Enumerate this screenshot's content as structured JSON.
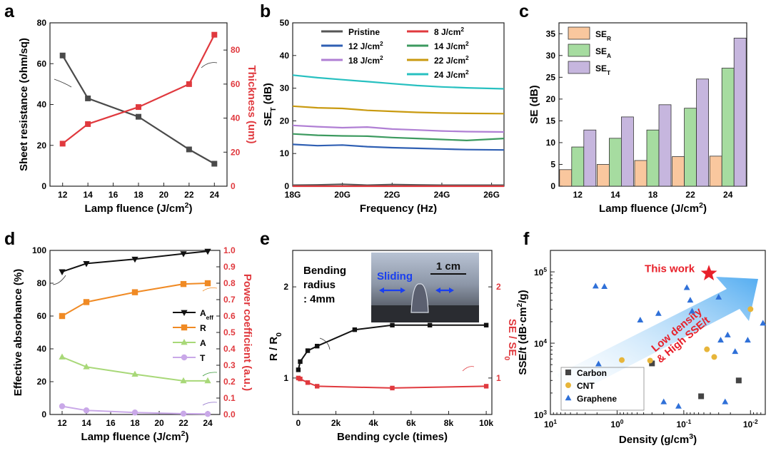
{
  "chart_data": [
    {
      "panel": "a",
      "type": "line",
      "x": [
        12,
        14,
        18,
        22,
        24
      ],
      "xlabel_main": "Lamp fluence (J/cm",
      "xlabel_sup": "2",
      "xlabel_end": ")",
      "xticks": [
        "12",
        "14",
        "16",
        "18",
        "20",
        "22",
        "24"
      ],
      "ylabel_left": "Sheet resistance (ohm/sq)",
      "ylabel_right": "Thickness (um)",
      "yticks_left": [
        "0",
        "20",
        "40",
        "60",
        "80"
      ],
      "yticks_right": [
        "0",
        "20",
        "40",
        "60",
        "80"
      ],
      "ylim_left": [
        0,
        80
      ],
      "ylim_right": [
        0,
        96
      ],
      "series": [
        {
          "name": "Sheet resistance",
          "axis": "left",
          "color": "#4a4a4a",
          "values": [
            64,
            43,
            34,
            18,
            11
          ]
        },
        {
          "name": "Thickness",
          "axis": "right",
          "color": "#e0393e",
          "values": [
            25,
            36.5,
            46.5,
            60,
            89
          ]
        }
      ]
    },
    {
      "panel": "b",
      "type": "line",
      "xlabel": "Frequency (Hz)",
      "xticks": [
        "18G",
        "20G",
        "22G",
        "24G",
        "26G"
      ],
      "xlim": [
        18,
        26.5
      ],
      "ylabel_main": "SE",
      "ylabel_sub": "T",
      "ylabel_end": " (dB)",
      "yticks": [
        "0",
        "10",
        "20",
        "30",
        "40",
        "50"
      ],
      "ylim": [
        0,
        50
      ],
      "series": [
        {
          "name": "Pristine",
          "color": "#555555",
          "x": [
            18,
            19,
            20,
            21,
            22,
            23,
            24,
            25,
            26.5
          ],
          "values": [
            0.3,
            0.4,
            0.6,
            0.3,
            0.5,
            0.4,
            0.3,
            0.3,
            0.3
          ]
        },
        {
          "name": "8",
          "unit": "J/cm",
          "sup": "2",
          "color": "#e0393e",
          "x": [
            18,
            20,
            22,
            24,
            26.5
          ],
          "values": [
            0,
            0,
            0,
            0,
            0
          ]
        },
        {
          "name": "12",
          "unit": "J/cm",
          "sup": "2",
          "color": "#2f5fb3",
          "x": [
            18,
            19,
            20,
            21,
            22,
            23,
            24,
            25,
            26.5
          ],
          "values": [
            12.8,
            12.4,
            12.6,
            12.1,
            11.8,
            11.6,
            11.4,
            11.2,
            11.1
          ]
        },
        {
          "name": "14",
          "unit": "J/cm",
          "sup": "2",
          "color": "#3c9a5f",
          "x": [
            18,
            19,
            20,
            21,
            22,
            23,
            24,
            25,
            26.5
          ],
          "values": [
            16.0,
            15.6,
            15.4,
            15.3,
            14.9,
            14.6,
            14.3,
            14.0,
            14.6
          ]
        },
        {
          "name": "18",
          "unit": "J/cm",
          "sup": "2",
          "color": "#b07fd4",
          "x": [
            18,
            19,
            20,
            21,
            22,
            23,
            24,
            25,
            26.5
          ],
          "values": [
            18.6,
            18.2,
            17.9,
            18.1,
            17.5,
            17.2,
            16.9,
            16.7,
            16.6
          ]
        },
        {
          "name": "22",
          "unit": "J/cm",
          "sup": "2",
          "color": "#c99a10",
          "x": [
            18,
            19,
            20,
            21,
            22,
            23,
            24,
            25,
            26.5
          ],
          "values": [
            24.5,
            24.0,
            23.8,
            23.2,
            22.9,
            22.6,
            22.4,
            22.3,
            22.2
          ]
        },
        {
          "name": "24",
          "unit": "J/cm",
          "sup": "2",
          "color": "#27c0c0",
          "x": [
            18,
            19,
            20,
            21,
            22,
            23,
            24,
            25,
            26.5
          ],
          "values": [
            34.0,
            33.2,
            32.6,
            32.0,
            31.4,
            30.8,
            30.4,
            30.1,
            29.8
          ]
        }
      ]
    },
    {
      "panel": "c",
      "type": "bar",
      "categories": [
        "12",
        "14",
        "18",
        "22",
        "24"
      ],
      "xlabel_main": "Lamp fluence (J/cm",
      "xlabel_sup": "2",
      "xlabel_end": ")",
      "ylabel": "SE (dB)",
      "yticks": [
        "0",
        "5",
        "10",
        "15",
        "20",
        "25",
        "30",
        "35"
      ],
      "ylim": [
        0,
        37.5
      ],
      "series": [
        {
          "name": "SE",
          "sub": "R",
          "color": "#f9c79e",
          "values": [
            3.8,
            5.0,
            5.9,
            6.8,
            6.9
          ]
        },
        {
          "name": "SE",
          "sub": "A",
          "color": "#a6dca0",
          "values": [
            9.0,
            11.0,
            12.9,
            17.9,
            27.1
          ]
        },
        {
          "name": "SE",
          "sub": "T",
          "color": "#c6b6de",
          "values": [
            12.9,
            15.9,
            18.7,
            24.6,
            34.0
          ]
        }
      ]
    },
    {
      "panel": "d",
      "type": "line",
      "x": [
        12,
        14,
        18,
        22,
        24
      ],
      "xlabel_main": "Lamp fluence (J/cm",
      "xlabel_sup": "2",
      "xlabel_end": ")",
      "xticks": [
        "12",
        "14",
        "16",
        "18",
        "20",
        "22",
        "24"
      ],
      "ylabel_left": "Effective absorbance (%)",
      "ylabel_right": "Power coefficient (a.u.)",
      "yticks_left": [
        "0",
        "20",
        "40",
        "60",
        "80",
        "100"
      ],
      "yticks_right": [
        "0.0",
        "0.1",
        "0.2",
        "0.3",
        "0.4",
        "0.5",
        "0.6",
        "0.7",
        "0.8",
        "0.9",
        "1.0"
      ],
      "ylim_left": [
        0,
        100
      ],
      "ylim_right": [
        0,
        1
      ],
      "series": [
        {
          "name": "A",
          "sub": "eff",
          "axis": "left",
          "marker": "tri-down",
          "color": "#111111",
          "values": [
            87,
            92,
            94.7,
            98,
            99.5
          ]
        },
        {
          "name": "R",
          "axis": "right",
          "marker": "square",
          "color": "#f08a24",
          "values": [
            0.6,
            0.685,
            0.745,
            0.795,
            0.8
          ]
        },
        {
          "name": "A",
          "axis": "right",
          "marker": "tri-up",
          "color": "#a8d878",
          "values": [
            0.35,
            0.29,
            0.245,
            0.205,
            0.205
          ]
        },
        {
          "name": "T",
          "axis": "right",
          "marker": "circle",
          "color": "#c9a8e8",
          "values": [
            0.05,
            0.025,
            0.012,
            0.005,
            0.003
          ]
        }
      ]
    },
    {
      "panel": "e",
      "type": "line",
      "xlabel": "Bending cycle (times)",
      "xticks": [
        "0",
        "2k",
        "4k",
        "6k",
        "8k",
        "10k"
      ],
      "xlim": [
        -300,
        10300
      ],
      "ylabel_left_main": "R / R",
      "ylabel_left_sub": "0",
      "ylabel_right_main": "SE / SE",
      "ylabel_right_sub": "0",
      "yticks_left": [
        "1",
        "2"
      ],
      "yticks_right": [
        "1",
        "2"
      ],
      "ylim": [
        0.6,
        2.4
      ],
      "annotation": [
        "Bending",
        "radius",
        ": 4mm"
      ],
      "inset": {
        "label_sliding": "Sliding",
        "scale_bar": "1 cm"
      },
      "series": [
        {
          "name": "R / R0",
          "axis": "left",
          "color": "#111111",
          "x": [
            0,
            100,
            500,
            1000,
            3000,
            5000,
            7000,
            10000
          ],
          "values": [
            1.09,
            1.18,
            1.3,
            1.35,
            1.53,
            1.58,
            1.58,
            1.58
          ]
        },
        {
          "name": "SE / SE0",
          "axis": "right",
          "color": "#e0393e",
          "x": [
            0,
            100,
            500,
            1000,
            5000,
            10000
          ],
          "values": [
            1.0,
            0.99,
            0.95,
            0.91,
            0.89,
            0.91
          ]
        }
      ]
    },
    {
      "panel": "f",
      "type": "scatter",
      "xlabel_main": "Density (g/cm",
      "xlabel_sup": "3",
      "xlabel_end": ")",
      "ylabel_main": "SSE/t (dB·cm",
      "ylabel_sup": "2",
      "ylabel_end": "/g)",
      "xscale": "log-reversed",
      "xlim": [
        10,
        0.006
      ],
      "ylim": [
        1000,
        200000
      ],
      "xticks": [
        {
          "base": "10",
          "exp": "1"
        },
        {
          "base": "10",
          "exp": "0"
        },
        {
          "base": "10",
          "exp": "-1"
        },
        {
          "base": "10",
          "exp": "-2"
        }
      ],
      "yticks": [
        {
          "base": "10",
          "exp": "3"
        },
        {
          "base": "10",
          "exp": "4"
        },
        {
          "base": "10",
          "exp": "5"
        }
      ],
      "arrow_text": [
        "Low density",
        "& High SSE/t"
      ],
      "highlight": {
        "label": "This work",
        "x": 0.042,
        "y": 95000,
        "color": "#e8202a"
      },
      "series": [
        {
          "name": "Carbon",
          "marker": "square",
          "color": "#444444",
          "points": [
            [
              0.3,
              5200
            ],
            [
              0.055,
              1800
            ],
            [
              0.015,
              3000
            ]
          ]
        },
        {
          "name": "CNT",
          "marker": "circle",
          "color": "#e7b53a",
          "points": [
            [
              0.85,
              5800
            ],
            [
              0.32,
              5700
            ],
            [
              0.045,
              8200
            ],
            [
              0.035,
              6400
            ],
            [
              0.01,
              30000
            ]
          ]
        },
        {
          "name": "Graphene",
          "marker": "tri-up",
          "color": "#2f70d8",
          "points": [
            [
              2.1,
              63000
            ],
            [
              1.55,
              62000
            ],
            [
              1.9,
              5100
            ],
            [
              0.45,
              21000
            ],
            [
              0.24,
              26000
            ],
            [
              0.09,
              60000
            ],
            [
              0.08,
              40000
            ],
            [
              0.075,
              28000
            ],
            [
              0.03,
              44000
            ],
            [
              0.028,
              11000
            ],
            [
              0.022,
              13000
            ],
            [
              0.017,
              7600
            ],
            [
              0.011,
              11000
            ],
            [
              0.0065,
              19000
            ],
            [
              0.2,
              1500
            ],
            [
              0.12,
              1300
            ],
            [
              0.024,
              1500
            ]
          ]
        }
      ]
    }
  ]
}
